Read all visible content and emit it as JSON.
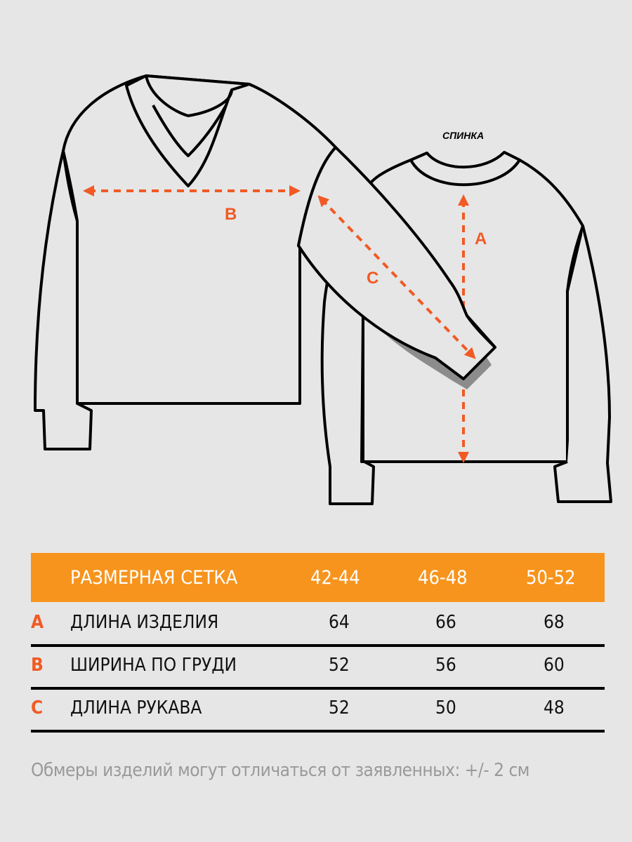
{
  "illustration": {
    "back_label": "СПИНКА",
    "markers": {
      "a": "A",
      "b": "B",
      "c": "C"
    },
    "colors": {
      "accent": "#f15a24",
      "header": "#f7941d",
      "background": "#e6e6e6"
    }
  },
  "table": {
    "title": "РАЗМЕРНАЯ СЕТКА",
    "sizes": [
      "42-44",
      "46-48",
      "50-52"
    ],
    "rows": [
      {
        "letter": "A",
        "name": "ДЛИНА ИЗДЕЛИЯ",
        "values": [
          "64",
          "66",
          "68"
        ]
      },
      {
        "letter": "B",
        "name": "ШИРИНА ПО ГРУДИ",
        "values": [
          "52",
          "56",
          "60"
        ]
      },
      {
        "letter": "C",
        "name": "ДЛИНА РУКАВА",
        "values": [
          "52",
          "50",
          "48"
        ]
      }
    ]
  },
  "note": "Обмеры изделий могут отличаться от заявленных: +/- 2 см"
}
